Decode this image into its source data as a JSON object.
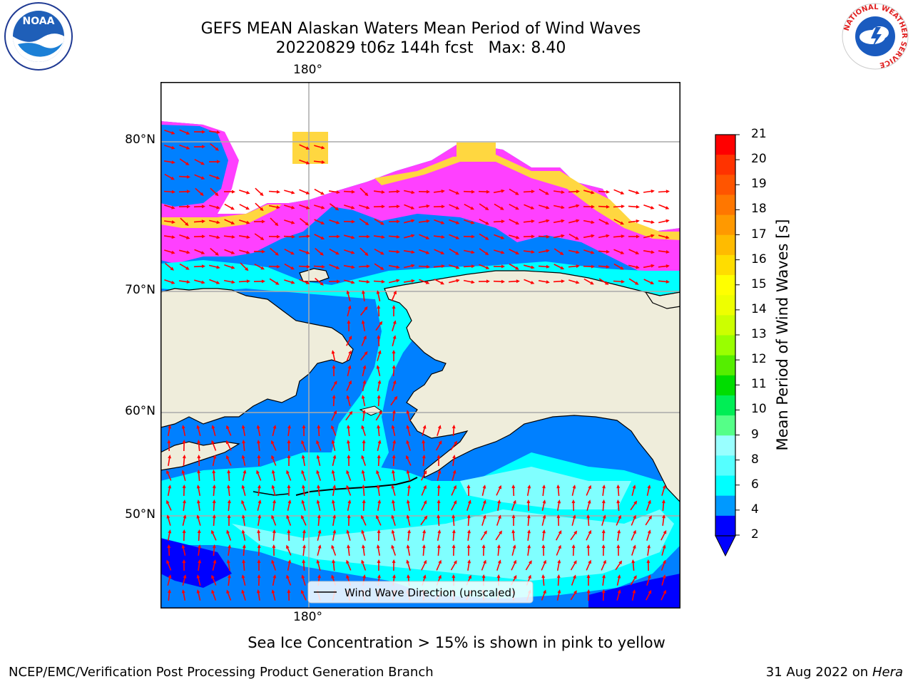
{
  "title": "GEFS MEAN Alaskan Waters Mean Period of Wind Waves",
  "subtitle": "20220829 t06z 144h fcst   Max: 8.40",
  "logos": {
    "left": "NOAA",
    "right_ring": "NATIONAL WEATHER SERVICE"
  },
  "map": {
    "lat_labels": [
      "80°N",
      "70°N",
      "60°N",
      "50°N"
    ],
    "lon_label_top": "180°",
    "lon_label_bottom": "180°",
    "legend_text": "Wind Wave Direction (unscaled)",
    "land_color": "#efeddb",
    "ocean_colors": {
      "lt2": "#0000ff",
      "c2_4": "#0080ff",
      "c4_6": "#00ffff",
      "c6_8": "#80ffff"
    },
    "ice_colors": [
      "#ff00ff",
      "#ff80ff",
      "#ffd740",
      "#ffff40"
    ],
    "arrow_color": "#ff0000"
  },
  "colorbar": {
    "label": "Mean Period of Wind Waves [s]",
    "ticks": [
      "21",
      "20",
      "19",
      "18",
      "17",
      "16",
      "15",
      "14",
      "13",
      "12",
      "11",
      "10",
      "9",
      "8",
      "6",
      "4",
      "2"
    ],
    "colors": [
      "#ff0000",
      "#ff3300",
      "#ff5500",
      "#ff7700",
      "#ff9900",
      "#ffbb00",
      "#ffdd00",
      "#ffff00",
      "#eeff00",
      "#ccff00",
      "#99ff00",
      "#55ee00",
      "#00dd00",
      "#00ee55",
      "#55ff88",
      "#99ffff",
      "#55ffff",
      "#00ffff",
      "#0099ff",
      "#0000ff"
    ]
  },
  "bottom_note": "Sea Ice Concentration > 15% is shown in pink to yellow",
  "footer": {
    "left": "NCEP/EMC/Verification Post Processing Product Generation Branch",
    "right_date": "31 Aug 2022 on",
    "right_machine": "Hera"
  }
}
